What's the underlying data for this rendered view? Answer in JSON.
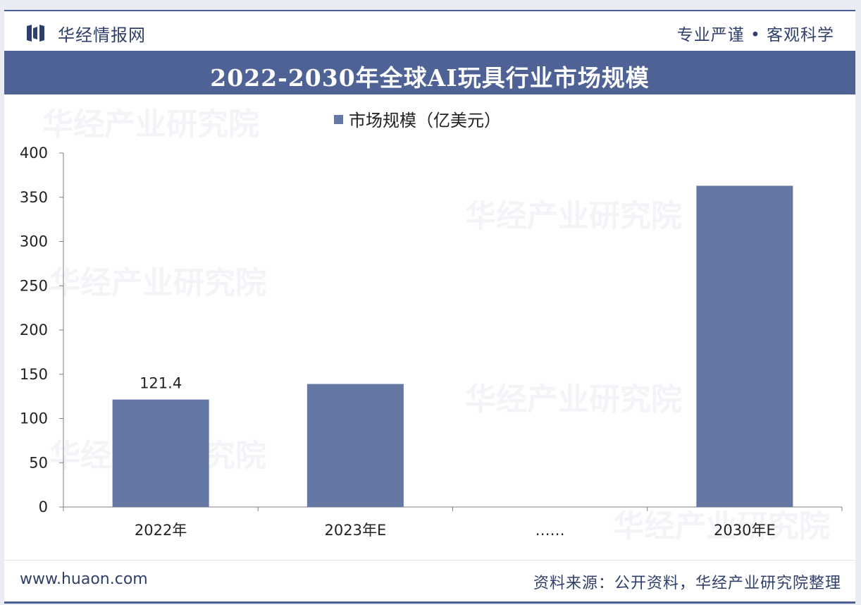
{
  "header": {
    "brand": "华经情报网",
    "slogan": "专业严谨 • 客观科学"
  },
  "title": "2022-2030年全球AI玩具行业市场规模",
  "footer": {
    "url": "www.huaon.com",
    "source": "资料来源：公开资料，华经产业研究院整理"
  },
  "watermark": "华经产业研究院",
  "colors": {
    "bar": "#6578a3",
    "title_band": "#4f6296",
    "brand_text": "#2f3f6b"
  },
  "chart_data": {
    "type": "bar",
    "categories": [
      "2022年",
      "2023年E",
      "……",
      "2030年E"
    ],
    "series": [
      {
        "name": "市场规模（亿美元）",
        "values": [
          121.4,
          139,
          null,
          363
        ],
        "data_labels": [
          "121.4",
          null,
          null,
          null
        ]
      }
    ],
    "ylim": [
      0,
      400
    ],
    "yticks": [
      0,
      50,
      100,
      150,
      200,
      250,
      300,
      350,
      400
    ],
    "legend_position": "top-center",
    "grid": false
  }
}
